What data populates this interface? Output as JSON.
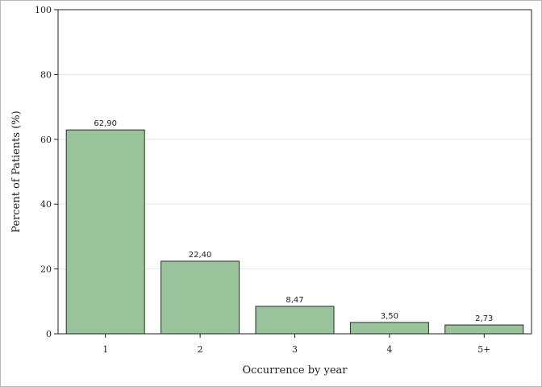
{
  "chart_data": {
    "type": "bar",
    "title": "",
    "xlabel": "Occurrence by year",
    "ylabel": "Percent of Patients (%)",
    "categories": [
      "1",
      "2",
      "3",
      "4",
      "5+"
    ],
    "values": [
      62.9,
      22.4,
      8.47,
      3.5,
      2.73
    ],
    "value_labels": [
      "62,90",
      "22,40",
      "8,47",
      "3,50",
      "2,73"
    ],
    "ylim": [
      0,
      100
    ],
    "yticks": [
      0,
      20,
      40,
      60,
      80,
      100
    ],
    "grid": true,
    "colors": {
      "bar_fill": "#99c39a",
      "bar_stroke": "#2b2b2b",
      "grid": "#e6e6e6"
    }
  }
}
